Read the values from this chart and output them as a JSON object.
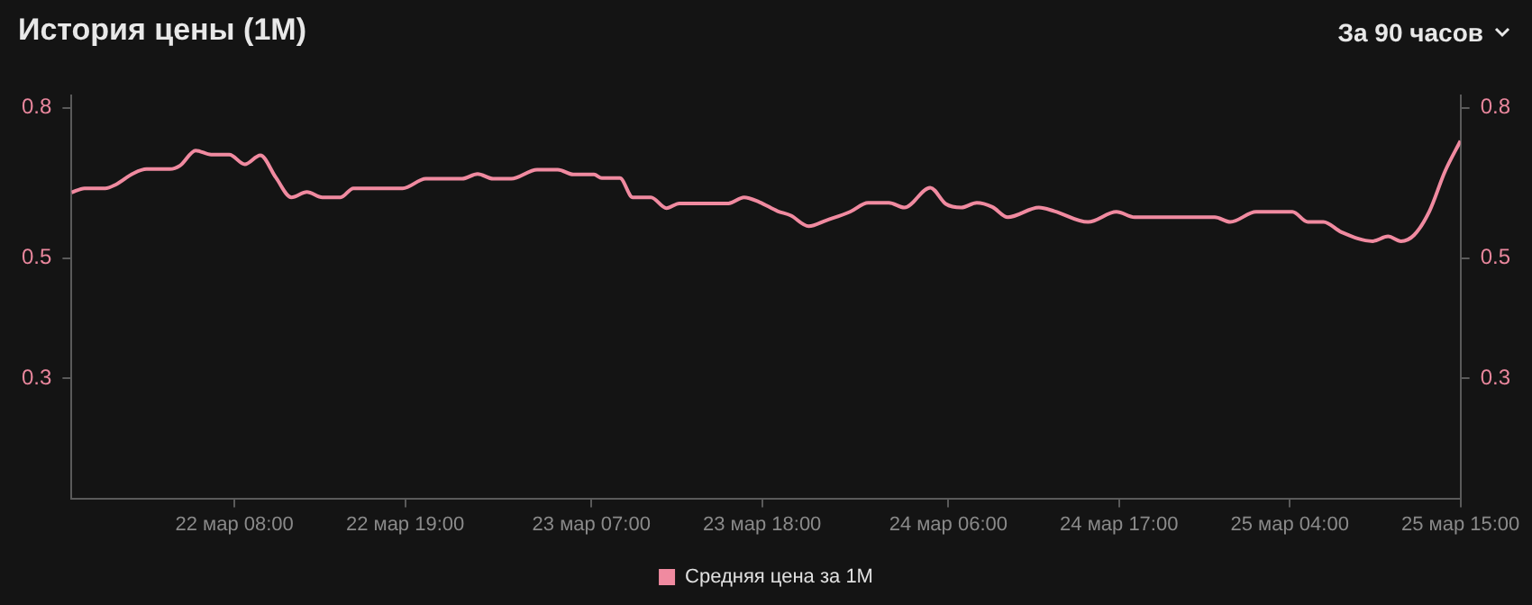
{
  "chart_data": {
    "type": "line",
    "title": "История цены (1M)",
    "annotations": [
      "За 90 часов"
    ],
    "legend": "bottom",
    "grid": false,
    "marker": "none",
    "line_style": "solid",
    "x": [
      "--03-21T21:30",
      "--03-21T22:20",
      "--03-21T23:40",
      "--03-22T00:20",
      "--03-22T01:30",
      "--03-22T02:20",
      "--03-22T03:50",
      "--03-22T04:30",
      "--03-22T05:30",
      "--03-22T06:30",
      "--03-22T07:40",
      "--03-22T08:40",
      "--03-22T09:40",
      "--03-22T10:40",
      "--03-22T11:40",
      "--03-22T12:40",
      "--03-22T13:40",
      "--03-22T14:50",
      "--03-22T15:40",
      "--03-22T18:50",
      "--03-22T20:20",
      "--03-22T22:40",
      "--03-22T23:40",
      "--03-23T00:40",
      "--03-23T01:50",
      "--03-23T03:30",
      "--03-23T04:50",
      "--03-23T05:50",
      "--03-23T07:10",
      "--03-23T07:40",
      "--03-23T08:50",
      "--03-23T09:40",
      "--03-23T10:50",
      "--03-23T11:50",
      "--03-23T12:40",
      "--03-23T15:50",
      "--03-23T16:50",
      "--03-23T17:50",
      "--03-23T19:00",
      "--03-23T19:50",
      "--03-23T21:00",
      "--03-23T22:10",
      "--03-23T23:40",
      "--03-24T00:50",
      "--03-24T02:10",
      "--03-24T03:10",
      "--03-24T04:50",
      "--03-24T05:50",
      "--03-24T06:50",
      "--03-24T07:50",
      "--03-24T08:50",
      "--03-24T09:50",
      "--03-24T11:50",
      "--03-24T12:50",
      "--03-24T15:00",
      "--03-24T16:50",
      "--03-24T18:00",
      "--03-24T23:10",
      "--03-25T00:10",
      "--03-25T01:50",
      "--03-25T04:10",
      "--03-25T05:10",
      "--03-25T06:10",
      "--03-25T07:20",
      "--03-25T09:20",
      "--03-25T10:20",
      "--03-25T11:10",
      "--03-25T12:00",
      "--03-25T13:00",
      "--03-25T14:00",
      "--03-25T15:00"
    ],
    "series": [
      {
        "name": "Средняя цена за 1M",
        "color": "#f08aa0",
        "values": [
          0.609,
          0.616,
          0.616,
          0.622,
          0.641,
          0.648,
          0.648,
          0.654,
          0.679,
          0.672,
          0.672,
          0.656,
          0.671,
          0.634,
          0.601,
          0.61,
          0.601,
          0.601,
          0.616,
          0.616,
          0.632,
          0.632,
          0.64,
          0.632,
          0.632,
          0.647,
          0.647,
          0.639,
          0.639,
          0.633,
          0.633,
          0.601,
          0.601,
          0.583,
          0.591,
          0.591,
          0.601,
          0.593,
          0.578,
          0.571,
          0.553,
          0.563,
          0.577,
          0.592,
          0.592,
          0.584,
          0.617,
          0.59,
          0.584,
          0.592,
          0.585,
          0.568,
          0.584,
          0.578,
          0.56,
          0.577,
          0.568,
          0.568,
          0.56,
          0.577,
          0.577,
          0.56,
          0.56,
          0.543,
          0.528,
          0.536,
          0.528,
          0.538,
          0.578,
          0.644,
          0.695
        ]
      }
    ],
    "xlim": [
      "--03-21T21:30",
      "--03-25T15:00"
    ],
    "xticks": [
      {
        "value": "--03-22T08:00",
        "label": "22 мар 08:00"
      },
      {
        "value": "--03-22T19:00",
        "label": "22 мар 19:00"
      },
      {
        "value": "--03-23T07:00",
        "label": "23 мар 07:00"
      },
      {
        "value": "--03-23T18:00",
        "label": "23 мар 18:00"
      },
      {
        "value": "--03-24T06:00",
        "label": "24 мар 06:00"
      },
      {
        "value": "--03-24T17:00",
        "label": "24 мар 17:00"
      },
      {
        "value": "--03-25T04:00",
        "label": "25 мар 04:00"
      },
      {
        "value": "--03-25T15:00",
        "label": "25 мар 15:00"
      }
    ],
    "ylim": [
      0.1,
      0.77
    ],
    "yticks": [
      {
        "value": 0.3,
        "label": "0.3"
      },
      {
        "value": 0.5,
        "label": "0.5"
      },
      {
        "value": 0.75,
        "label": "0.8"
      }
    ],
    "y2lim": [
      0.1,
      0.77
    ],
    "y2ticks": [
      {
        "value": 0.3,
        "label": "0.3"
      },
      {
        "value": 0.5,
        "label": "0.5"
      },
      {
        "value": 0.75,
        "label": "0.8"
      }
    ]
  }
}
